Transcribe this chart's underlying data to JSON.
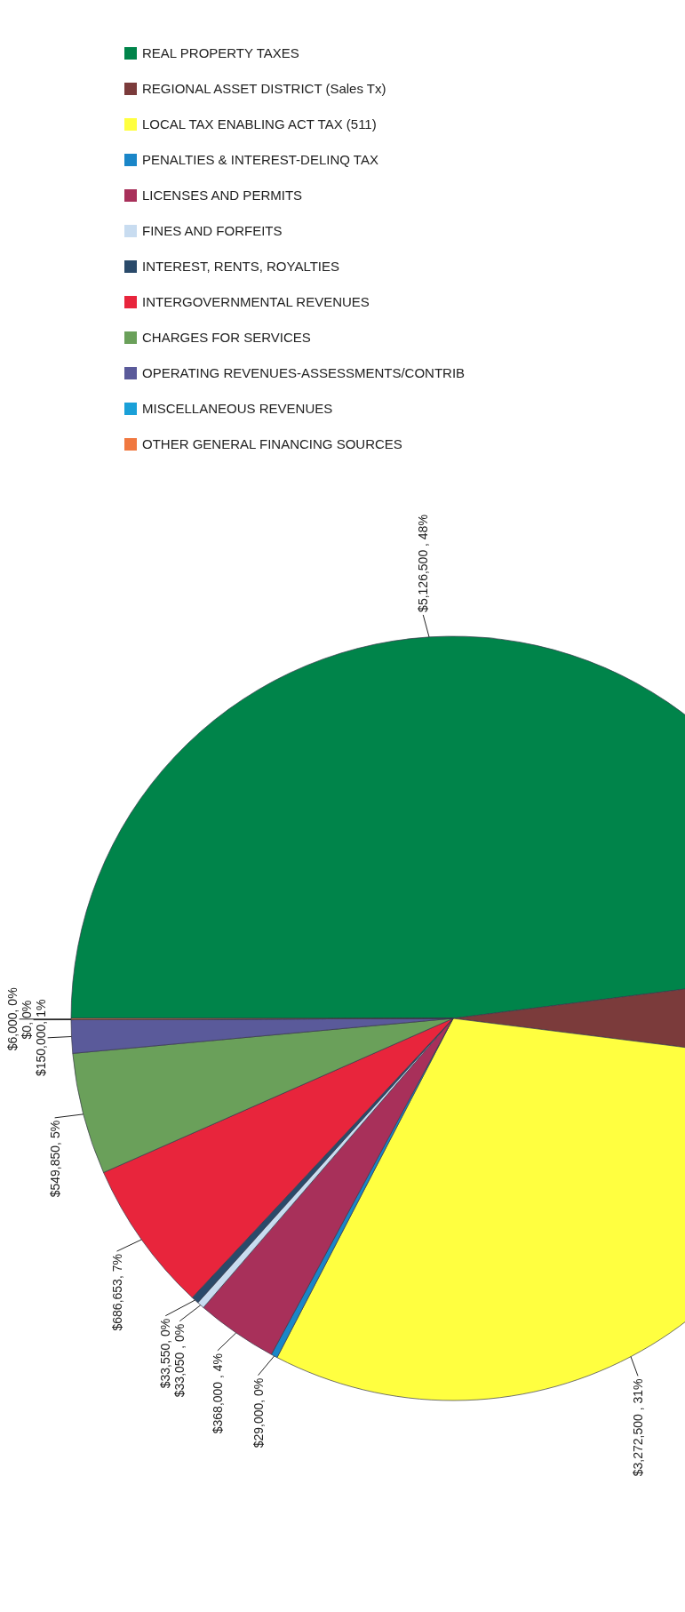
{
  "chart_data": {
    "type": "pie",
    "categories": [
      "REAL PROPERTY TAXES",
      "REGIONAL ASSET DISTRICT (Sales Tx)",
      "LOCAL TAX ENABLING ACT TAX (511)",
      "PENALTIES & INTEREST-DELINQ TAX",
      "LICENSES AND PERMITS",
      "FINES AND FORFEITS",
      "INTEREST, RENTS, ROYALTIES",
      "INTERGOVERNMENTAL REVENUES",
      "CHARGES FOR SERVICES",
      "OPERATING REVENUES-ASSESSMENTS/CONTRIB",
      "MISCELLANEOUS REVENUES",
      "OTHER GENERAL FINANCING SOURCES"
    ],
    "values": [
      5126500,
      425000,
      3272500,
      29000,
      368000,
      33050,
      33550,
      686653,
      549850,
      150000,
      0,
      6000
    ],
    "colors": [
      "#00844a",
      "#7b3b3b",
      "#ffff40",
      "#1a86c8",
      "#a8305a",
      "#c8dcf0",
      "#2a4a6a",
      "#e8253c",
      "#6aa05a",
      "#5a5a9a",
      "#1aa0d8",
      "#f07840"
    ],
    "value_labels": [
      "$5,126,500 , 48%",
      null,
      "$3,272,500 , 31%",
      "$29,000, 0%",
      "$368,000 , 4%",
      "$33,050 , 0%",
      "$33,550, 0%",
      "$686,653, 7%",
      "$549,850, 5%",
      "$150,000, 1%",
      "$0, 0%",
      "$6,000, 0%"
    ],
    "legend": "top"
  }
}
